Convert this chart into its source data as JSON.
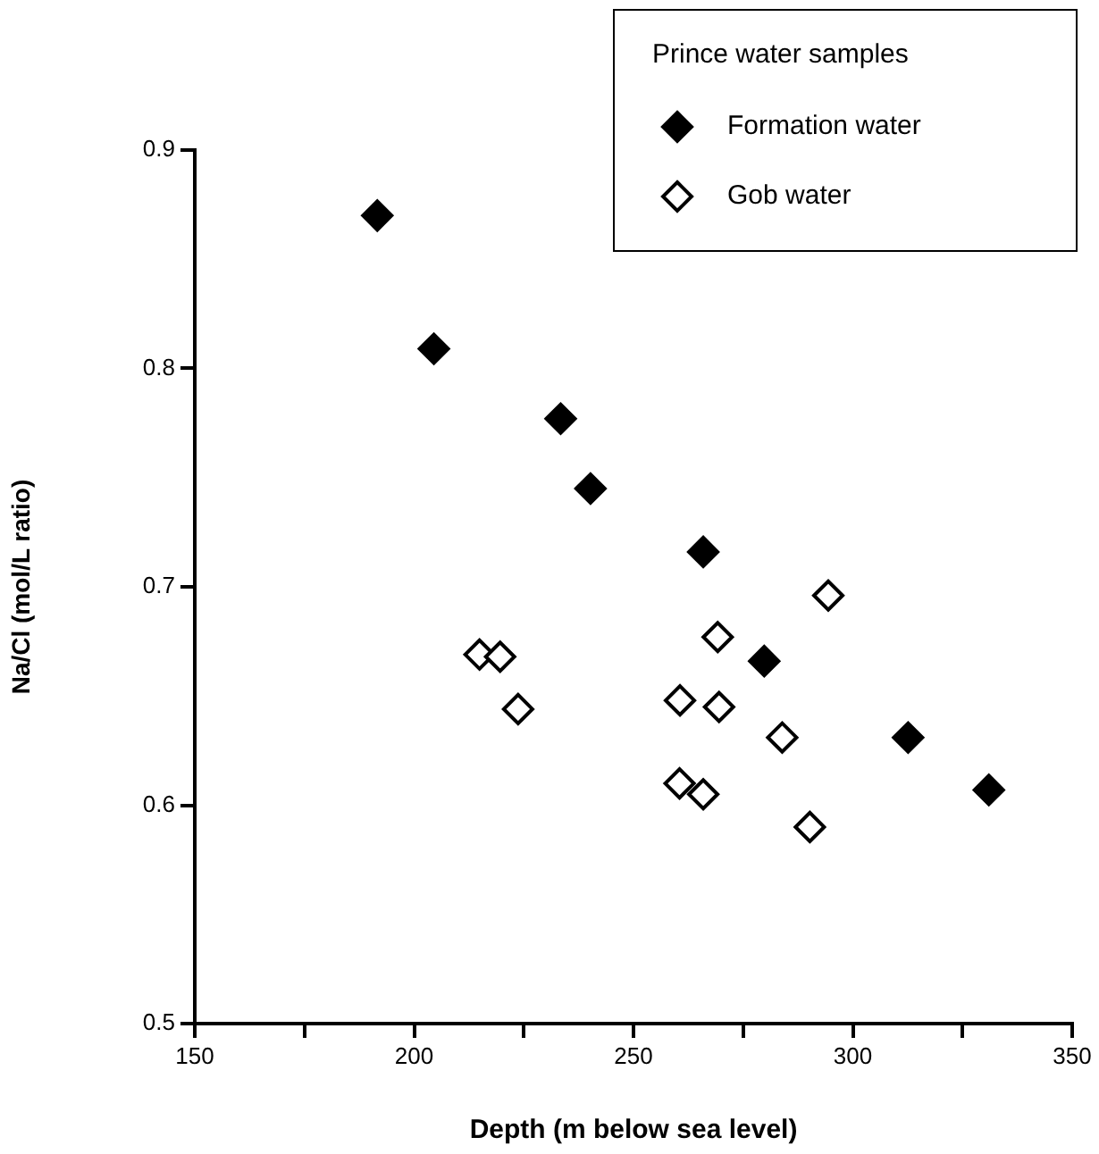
{
  "chart_data": {
    "type": "scatter",
    "xlabel": "Depth (m below sea level)",
    "ylabel": "Na/Cl (mol/L ratio)",
    "legend_title": "Prince water samples",
    "xlim": [
      150,
      350
    ],
    "xticks": [
      150,
      {
        "value": 175,
        "label": null
      },
      200,
      {
        "value": 225,
        "label": null
      },
      250,
      {
        "value": 275,
        "label": null
      },
      300,
      {
        "value": 325,
        "label": null
      },
      350
    ],
    "ylim": [
      0.5,
      0.9
    ],
    "yticks": [
      0.5,
      0.6,
      0.7,
      0.8,
      0.9
    ],
    "grid": false,
    "legend": "top right",
    "marker": "diamond",
    "series": [
      {
        "name": "Formation water",
        "color": "#000000",
        "x": [
          191.6,
          204.5,
          233.4,
          240.2,
          265.9,
          279.8,
          312.6,
          331
        ],
        "values": [
          0.87,
          0.809,
          0.777,
          0.745,
          0.716,
          0.666,
          0.631,
          0.607
        ]
      },
      {
        "name": "Gob water",
        "color": "#000000",
        "x": [
          214.9,
          219.6,
          223.7,
          260.3,
          260.6,
          269.2,
          269.5,
          294.4,
          283.9,
          260.5,
          265.9,
          290.2
        ],
        "values": [
          0.669,
          0.668,
          0.644,
          null,
          0.648,
          0.677,
          0.645,
          0.696,
          0.631,
          0.61,
          0.605,
          0.59
        ]
      }
    ]
  }
}
